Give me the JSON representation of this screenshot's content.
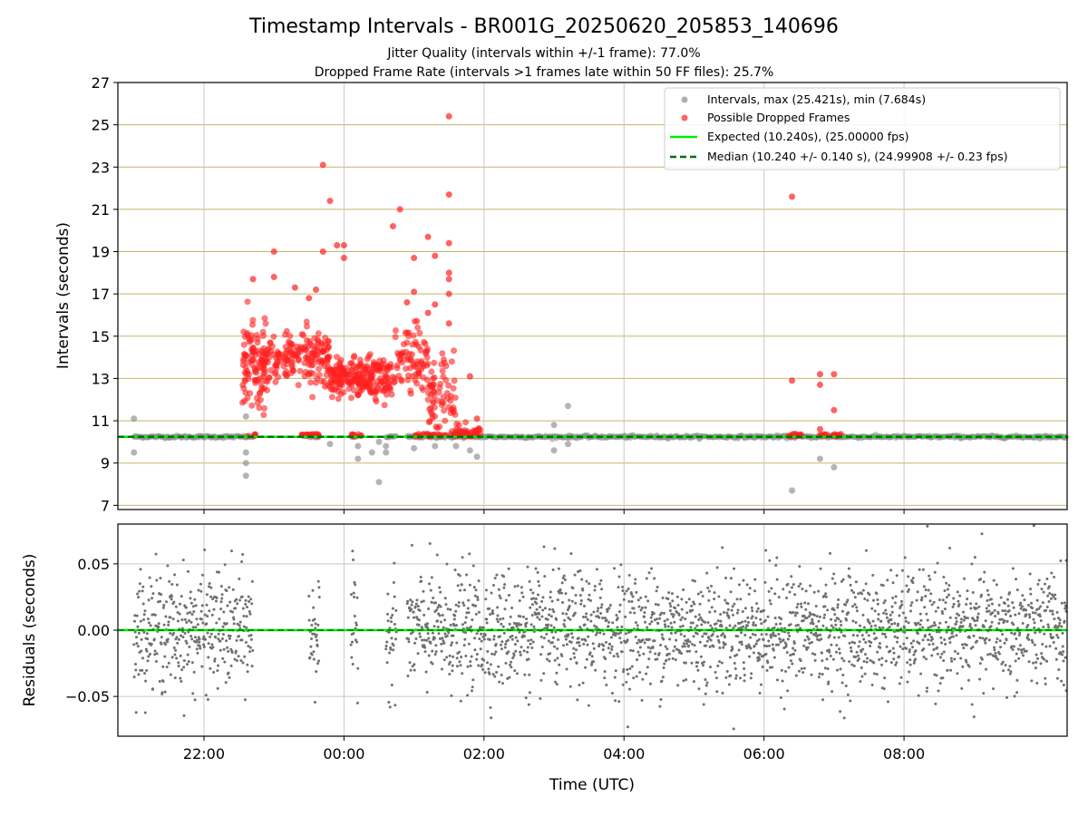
{
  "chart_data": {
    "type": "scatter",
    "title": "Timestamp Intervals - BR001G_20250620_205853_140696",
    "subtitle_lines": [
      "Jitter Quality (intervals within +/-1 frame): 77.0%",
      "Dropped Frame Rate (intervals >1 frames late within 50 FF files): 25.7%"
    ],
    "xlabel": "Time (UTC)",
    "x_tick_labels": [
      "22:00",
      "00:00",
      "02:00",
      "04:00",
      "06:00",
      "08:00"
    ],
    "x_tick_hours": [
      22,
      24,
      26,
      28,
      30,
      32
    ],
    "xlim_hours": [
      20.77,
      34.33
    ],
    "top_panel": {
      "ylabel": "Intervals (seconds)",
      "ylim": [
        6.8,
        27
      ],
      "yticks": [
        7,
        9,
        11,
        13,
        15,
        17,
        19,
        21,
        23,
        25,
        27
      ],
      "y_tick_labels": [
        "7",
        "9",
        "11",
        "13",
        "15",
        "17",
        "19",
        "21",
        "23",
        "25",
        "27"
      ],
      "grid": true,
      "legend_position": "top-right",
      "legend": [
        "Intervals, max (25.421s), min (7.684s)",
        "Possible Dropped Frames",
        "Expected (10.240s), (25.00000 fps)",
        "Median (10.240 +/- 0.140 s), (24.99908 +/- 0.23 fps)"
      ],
      "expected_interval": 10.24,
      "median_interval": 10.24,
      "colors": {
        "intervals": "#8c8c8c",
        "dropped": "#ff2020",
        "expected": "#00ee00",
        "median": "#007000"
      },
      "intervals_outliers": [
        [
          21.0,
          11.1
        ],
        [
          21.0,
          9.5
        ],
        [
          22.6,
          9.5
        ],
        [
          22.6,
          9.0
        ],
        [
          22.6,
          8.4
        ],
        [
          22.6,
          11.2
        ],
        [
          23.8,
          9.9
        ],
        [
          24.2,
          9.2
        ],
        [
          24.2,
          9.8
        ],
        [
          24.4,
          9.5
        ],
        [
          24.5,
          10.0
        ],
        [
          24.5,
          8.1
        ],
        [
          24.6,
          9.5
        ],
        [
          24.6,
          9.8
        ],
        [
          25.0,
          9.7
        ],
        [
          25.3,
          9.8
        ],
        [
          25.6,
          9.8
        ],
        [
          25.8,
          9.6
        ],
        [
          25.9,
          9.3
        ],
        [
          27.0,
          9.6
        ],
        [
          27.0,
          10.8
        ],
        [
          27.2,
          11.7
        ],
        [
          27.2,
          9.9
        ],
        [
          30.4,
          7.7
        ],
        [
          30.8,
          9.2
        ],
        [
          31.0,
          8.8
        ]
      ],
      "dropped_highlights": [
        [
          25.5,
          25.4
        ],
        [
          23.7,
          23.1
        ],
        [
          23.8,
          21.4
        ],
        [
          25.5,
          21.7
        ],
        [
          30.4,
          21.6
        ],
        [
          24.7,
          20.2
        ],
        [
          24.8,
          21.0
        ],
        [
          25.2,
          19.7
        ],
        [
          25.5,
          19.4
        ],
        [
          23.0,
          19.0
        ],
        [
          23.7,
          19.0
        ],
        [
          24.0,
          19.3
        ],
        [
          24.0,
          18.7
        ],
        [
          23.9,
          19.3
        ],
        [
          25.0,
          18.7
        ],
        [
          25.3,
          18.8
        ],
        [
          25.5,
          17.7
        ],
        [
          25.5,
          18.0
        ],
        [
          25.5,
          17.0
        ],
        [
          22.7,
          17.7
        ],
        [
          23.0,
          17.8
        ],
        [
          23.3,
          17.3
        ],
        [
          23.6,
          17.2
        ],
        [
          23.5,
          16.8
        ],
        [
          30.4,
          12.9
        ],
        [
          30.8,
          13.2
        ],
        [
          31.0,
          13.2
        ],
        [
          30.8,
          12.7
        ],
        [
          31.0,
          11.5
        ],
        [
          30.8,
          10.6
        ],
        [
          25.8,
          13.1
        ],
        [
          25.9,
          11.1
        ],
        [
          25.0,
          17.1
        ],
        [
          25.2,
          16.1
        ],
        [
          25.3,
          16.5
        ],
        [
          24.9,
          16.6
        ],
        [
          25.5,
          15.6
        ]
      ]
    },
    "bottom_panel": {
      "ylabel": "Residuals (seconds)",
      "ylim": [
        -0.08,
        0.08
      ],
      "yticks": [
        -0.05,
        0.0,
        0.05
      ],
      "y_tick_labels": [
        "−0.05",
        "0.00",
        "0.05"
      ],
      "grid": true,
      "zero_line": 0.0,
      "point_color": "#707070",
      "point_spread": 0.022
    },
    "data_segments_hours": [
      [
        21.0,
        22.7
      ],
      [
        23.5,
        23.65
      ],
      [
        24.1,
        24.2
      ],
      [
        24.6,
        24.75
      ],
      [
        24.9,
        34.33
      ]
    ],
    "dropped_clusters": [
      {
        "start": 22.55,
        "end": 22.95,
        "center": 13.6,
        "spread": 1.6,
        "count": 120
      },
      {
        "start": 22.95,
        "end": 23.8,
        "center": 14.0,
        "spread": 1.1,
        "count": 160
      },
      {
        "start": 23.8,
        "end": 24.7,
        "center": 13.0,
        "spread": 0.8,
        "count": 220
      },
      {
        "start": 24.7,
        "end": 25.2,
        "center": 13.8,
        "spread": 1.4,
        "count": 80
      },
      {
        "start": 25.2,
        "end": 25.6,
        "center": 12.2,
        "spread": 1.6,
        "count": 70
      },
      {
        "start": 25.6,
        "end": 25.95,
        "center": 10.4,
        "spread": 0.4,
        "count": 30
      }
    ]
  }
}
